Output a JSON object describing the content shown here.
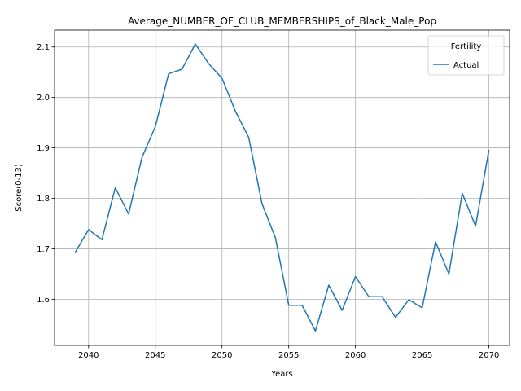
{
  "chart_data": {
    "type": "line",
    "title": "Average_NUMBER_OF_CLUB_MEMBERSHIPS_of_Black_Male_Pop",
    "xlabel": "Years",
    "ylabel": "Score(0-13)",
    "xlim": [
      2037.45,
      2071.55
    ],
    "ylim": [
      1.5085,
      2.1335
    ],
    "x_ticks": [
      2040,
      2045,
      2050,
      2055,
      2060,
      2065,
      2070
    ],
    "y_ticks": [
      1.6,
      1.7,
      1.8,
      1.9,
      2.0,
      2.1
    ],
    "grid": true,
    "legend": {
      "title": "Fertility",
      "placement": "top-right",
      "entries": [
        "Actual"
      ]
    },
    "series": [
      {
        "name": "Actual",
        "color": "#1f77b4",
        "x": [
          2039,
          2040,
          2041,
          2042,
          2043,
          2044,
          2045,
          2046,
          2047,
          2048,
          2049,
          2050,
          2051,
          2052,
          2053,
          2054,
          2055,
          2056,
          2057,
          2058,
          2059,
          2060,
          2061,
          2062,
          2063,
          2064,
          2065,
          2066,
          2067,
          2068,
          2069,
          2070
        ],
        "y": [
          1.693,
          1.738,
          1.718,
          1.821,
          1.769,
          1.881,
          1.942,
          2.047,
          2.056,
          2.106,
          2.067,
          2.038,
          1.973,
          1.921,
          1.789,
          1.722,
          1.588,
          1.588,
          1.537,
          1.628,
          1.578,
          1.645,
          1.605,
          1.605,
          1.564,
          1.599,
          1.583,
          1.714,
          1.65,
          1.81,
          1.745,
          1.896
        ]
      }
    ]
  }
}
